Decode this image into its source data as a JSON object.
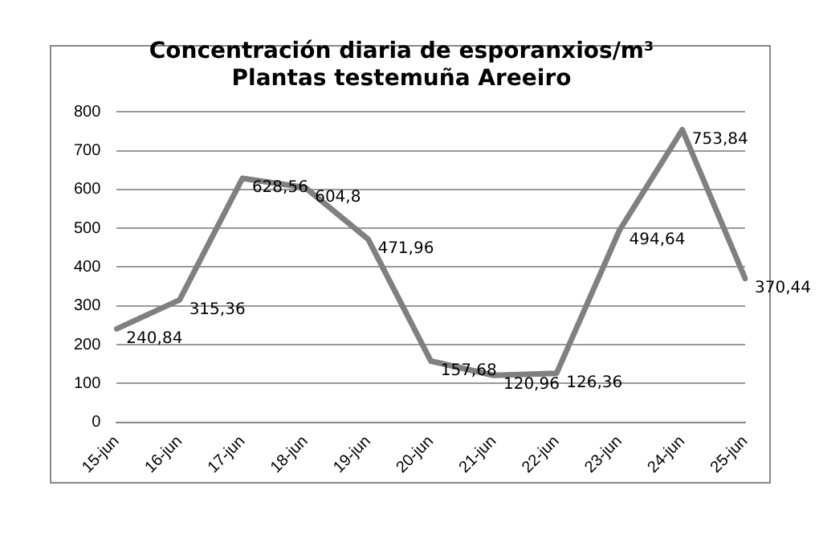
{
  "chart_data": {
    "type": "line",
    "title": "Concentración diaria de esporanxios/m³",
    "subtitle": "Plantas testemuña Areeiro",
    "categories": [
      "15-jun",
      "16-jun",
      "17-jun",
      "18-jun",
      "19-jun",
      "20-jun",
      "21-jun",
      "22-jun",
      "23-jun",
      "24-jun",
      "25-jun"
    ],
    "series": [
      {
        "color": "#808080",
        "values": [
          240.84,
          315.36,
          628.56,
          604.8,
          471.96,
          157.68,
          120.96,
          126.36,
          494.64,
          753.84,
          370.44
        ],
        "value_labels": [
          "240,84",
          "315,36",
          "628,56",
          "604,8",
          "471,96",
          "157,68",
          "120,96",
          "126,36",
          "494,64",
          "753,84",
          "370,44"
        ]
      }
    ],
    "ylim": [
      0,
      800
    ],
    "yticks": [
      0,
      100,
      200,
      300,
      400,
      500,
      600,
      700,
      800
    ],
    "grid": "y",
    "legend": false,
    "marker": "none",
    "line_style": "solid"
  }
}
